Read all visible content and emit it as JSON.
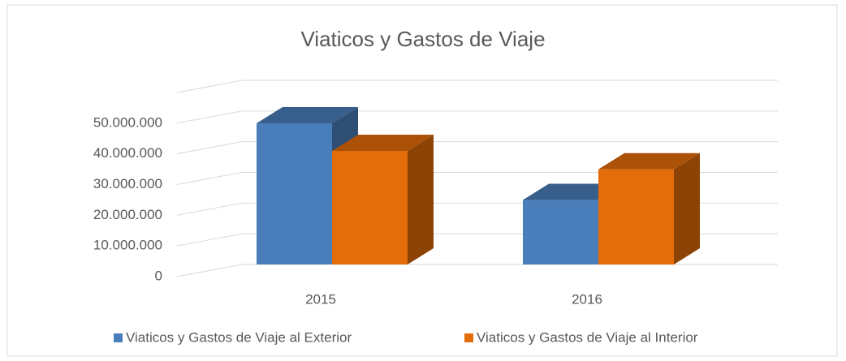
{
  "chart_data": {
    "type": "bar3d",
    "title": "Viaticos y Gastos de Viaje",
    "categories": [
      "2015",
      "2016"
    ],
    "series": [
      {
        "name": "Viaticos y Gastos de Viaje al Exterior",
        "color": "#4a7ebb",
        "values": [
          46000000,
          21000000
        ]
      },
      {
        "name": "Viaticos y Gastos de Viaje al Interior",
        "color": "#e46c0a",
        "values": [
          37000000,
          31000000
        ]
      }
    ],
    "ylim": [
      0,
      60000000
    ],
    "yticks": [
      0,
      {
        "value": 10000000,
        "label": "10.000.000"
      },
      {
        "value": 20000000,
        "label": "20.000.000"
      },
      {
        "value": 30000000,
        "label": "30.000.000"
      },
      {
        "value": 40000000,
        "label": "40.000.000"
      },
      {
        "value": 50000000,
        "label": "50.000.000"
      }
    ],
    "grid": true,
    "legend": "bottom"
  }
}
